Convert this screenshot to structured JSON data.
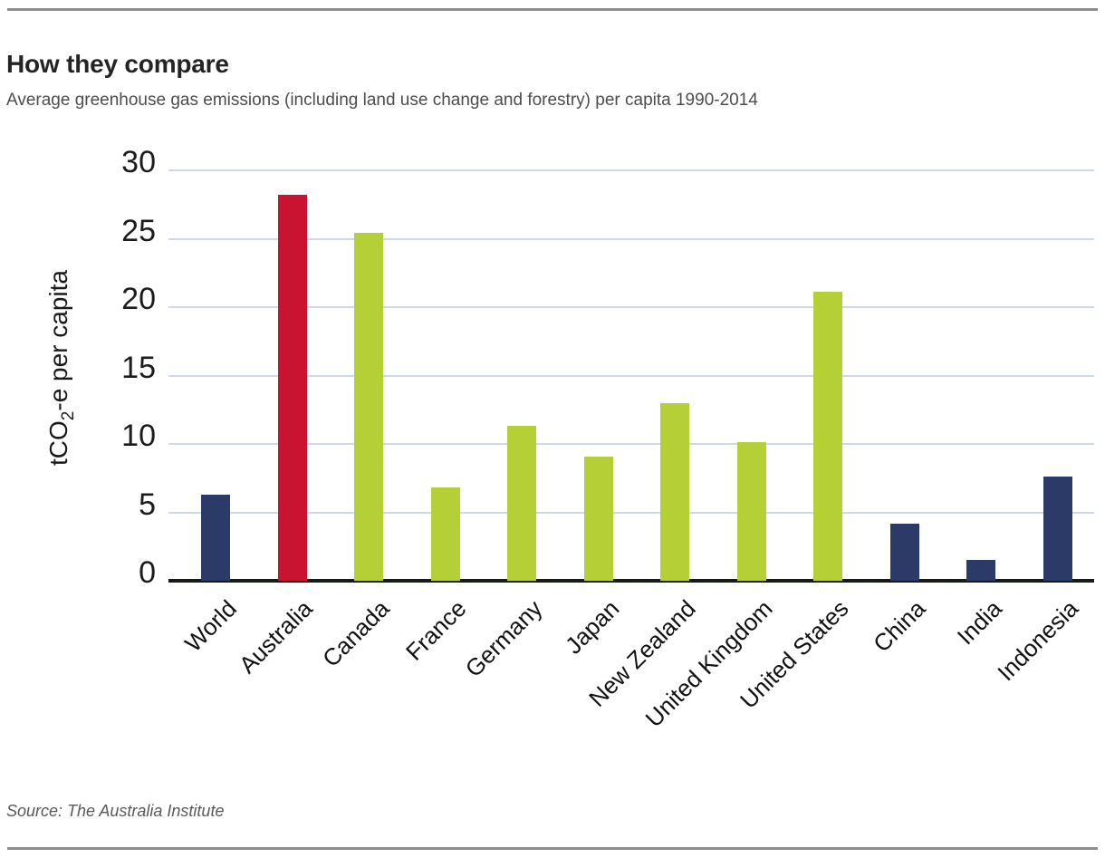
{
  "header": {
    "title": "How they compare",
    "subtitle": "Average greenhouse gas emissions (including land use change and forestry) per capita 1990-2014"
  },
  "source": "Source: The Australia Institute",
  "chart_data": {
    "type": "bar",
    "title": "How they compare",
    "subtitle": "Average greenhouse gas emissions (including land use change and forestry) per capita 1990-2014",
    "categories": [
      "World",
      "Australia",
      "Canada",
      "France",
      "Germany",
      "Japan",
      "New Zealand",
      "United Kingdom",
      "United States",
      "China",
      "India",
      "Indonesia"
    ],
    "values": [
      6.3,
      28.2,
      25.4,
      6.8,
      11.3,
      9.1,
      13.0,
      10.1,
      21.1,
      4.2,
      1.5,
      7.6
    ],
    "bar_colors": [
      "#2b3a66",
      "#c91330",
      "#b5cf36",
      "#b5cf36",
      "#b5cf36",
      "#b5cf36",
      "#b5cf36",
      "#b5cf36",
      "#b5cf36",
      "#2b3a66",
      "#2b3a66",
      "#2b3a66"
    ],
    "xlabel": "",
    "ylabel": {
      "prefix": "tCO",
      "sub": "2",
      "suffix": "-e per capita"
    },
    "ylim": [
      0,
      30
    ],
    "yticks": [
      0,
      5,
      10,
      15,
      20,
      25,
      30
    ],
    "grid": "horizontal",
    "legend": "none",
    "colors": {
      "navy": "#2b3a66",
      "red": "#c91330",
      "green": "#b5cf36",
      "gridline": "#ccd9e8",
      "axis": "#161b16"
    }
  }
}
